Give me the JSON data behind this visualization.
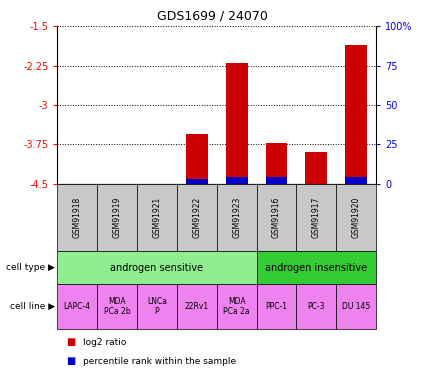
{
  "title": "GDS1699 / 24070",
  "samples": [
    "GSM91918",
    "GSM91919",
    "GSM91921",
    "GSM91922",
    "GSM91923",
    "GSM91916",
    "GSM91917",
    "GSM91920"
  ],
  "log2_ratio": [
    null,
    null,
    null,
    -3.55,
    -2.2,
    -3.72,
    -3.9,
    -1.85
  ],
  "percentile_rank": [
    null,
    null,
    null,
    3,
    4,
    4,
    null,
    4
  ],
  "ylim_left": [
    -4.5,
    -1.5
  ],
  "ylim_right": [
    0,
    100
  ],
  "yticks_left": [
    -4.5,
    -3.75,
    -3.0,
    -2.25,
    -1.5
  ],
  "yticks_right": [
    0,
    25,
    50,
    75,
    100
  ],
  "ytick_labels_left": [
    "-4.5",
    "-3.75",
    "-3",
    "-2.25",
    "-1.5"
  ],
  "ytick_labels_right": [
    "0",
    "25",
    "50",
    "75",
    "100%"
  ],
  "cell_types": [
    {
      "label": "androgen sensitive",
      "start": 0,
      "end": 4,
      "color": "#90EE90"
    },
    {
      "label": "androgen insensitive",
      "start": 5,
      "end": 7,
      "color": "#33CC33"
    }
  ],
  "cell_lines": [
    {
      "label": "LAPC-4",
      "col": 0
    },
    {
      "label": "MDA\nPCa 2b",
      "col": 1
    },
    {
      "label": "LNCa\nP",
      "col": 2
    },
    {
      "label": "22Rv1",
      "col": 3
    },
    {
      "label": "MDA\nPCa 2a",
      "col": 4
    },
    {
      "label": "PPC-1",
      "col": 5
    },
    {
      "label": "PC-3",
      "col": 6
    },
    {
      "label": "DU 145",
      "col": 7
    }
  ],
  "cell_line_color": "#EE82EE",
  "sample_box_color": "#C8C8C8",
  "bar_color_red": "#CC0000",
  "bar_color_blue": "#0000CC",
  "n_cols": 8
}
